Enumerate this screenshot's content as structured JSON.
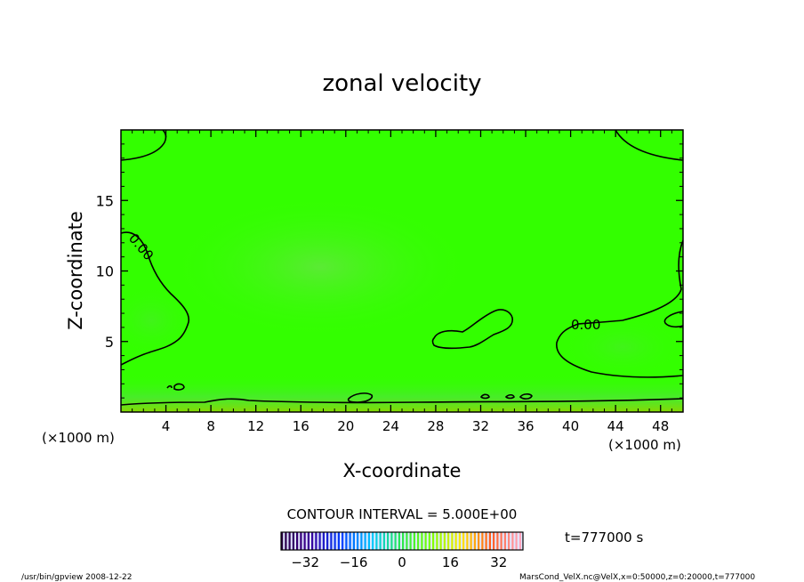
{
  "chart_data": {
    "type": "heatmap",
    "title": "zonal velocity",
    "xlabel": "X-coordinate",
    "ylabel": "Z-coordinate",
    "xlim": [
      0,
      50000
    ],
    "ylim": [
      0,
      20000
    ],
    "x_ticks": [
      "4",
      "8",
      "12",
      "16",
      "20",
      "24",
      "28",
      "32",
      "36",
      "40",
      "44",
      "48"
    ],
    "y_ticks": [
      "5",
      "10",
      "15"
    ],
    "x_unit_left": "(×1000 m)",
    "x_unit_right": "(×1000 m)",
    "contour_interval_label": "CONTOUR INTERVAL = 5.000E+00",
    "contour_labels": [
      "0.00",
      "0.00"
    ],
    "colorbar": {
      "range": [
        -40,
        40
      ],
      "ticks": [
        "−32",
        "−16",
        "0",
        "16",
        "32"
      ]
    },
    "time_label": "t=777000 s",
    "footer_left": "/usr/bin/gpview  2008-12-22",
    "footer_right": "MarsCond_VelX.nc@VelX,x=0:50000,z=0:20000,t=777000",
    "colors": {
      "field": "#33ff00",
      "field_light": "#55ee22",
      "contour": "#000000"
    }
  }
}
